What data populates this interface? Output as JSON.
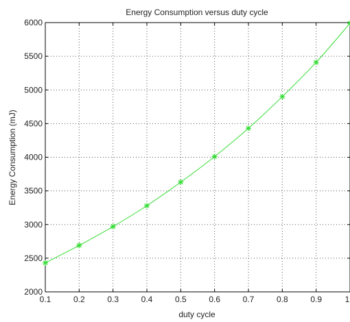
{
  "chart_data": {
    "type": "line",
    "title": "Energy Consumption versus duty cycle",
    "xlabel": "duty cycle",
    "ylabel": "Energy Consumption (mJ)",
    "xlim": [
      0.1,
      1
    ],
    "ylim": [
      2000,
      6000
    ],
    "xticks": [
      "0.1",
      "0.2",
      "0.3",
      "0.4",
      "0.5",
      "0.6",
      "0.7",
      "0.8",
      "0.9",
      "1"
    ],
    "yticks": [
      "2000",
      "2500",
      "3000",
      "3500",
      "4000",
      "4500",
      "5000",
      "5500",
      "6000"
    ],
    "grid": true,
    "series": [
      {
        "color": "#33dd33",
        "marker": "asterisk",
        "x": [
          0.1,
          0.2,
          0.3,
          0.4,
          0.5,
          0.6,
          0.7,
          0.8,
          0.9,
          1.0
        ],
        "y": [
          2430,
          2690,
          2970,
          3280,
          3630,
          4010,
          4430,
          4900,
          5410,
          5990
        ]
      }
    ]
  }
}
